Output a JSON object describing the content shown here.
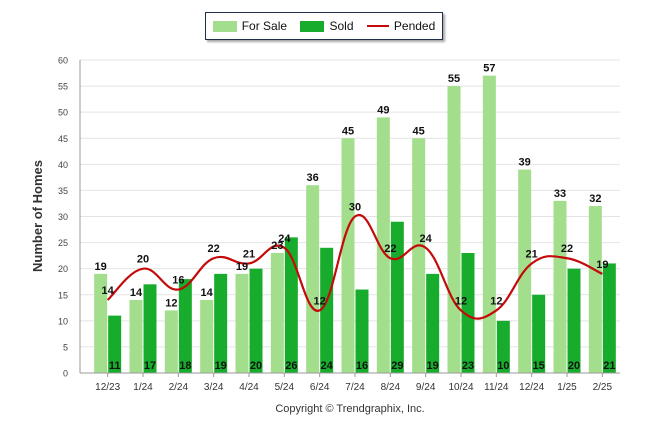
{
  "legend": {
    "for_sale": "For Sale",
    "sold": "Sold",
    "pended": "Pended"
  },
  "copyright": "Copyright © Trendgraphix, Inc.",
  "colors": {
    "for_sale": "#a3de8c",
    "sold": "#18ac2c",
    "pended": "#c40a0a",
    "grid": "#e4e4e4"
  },
  "chart_data": {
    "type": "bar",
    "title": "",
    "xlabel": "",
    "ylabel": "Number of Homes",
    "ylim": [
      0,
      60
    ],
    "yticks": [
      0,
      5,
      10,
      15,
      20,
      25,
      30,
      35,
      40,
      45,
      50,
      55,
      60
    ],
    "grid": true,
    "legend_position": "top-center",
    "categories": [
      "12/23",
      "1/24",
      "2/24",
      "3/24",
      "4/24",
      "5/24",
      "6/24",
      "7/24",
      "8/24",
      "9/24",
      "10/24",
      "11/24",
      "12/24",
      "1/25",
      "2/25"
    ],
    "series": [
      {
        "name": "For Sale",
        "type": "bar",
        "values": [
          19,
          14,
          12,
          14,
          19,
          23,
          36,
          45,
          49,
          45,
          55,
          57,
          39,
          33,
          32
        ]
      },
      {
        "name": "Sold",
        "type": "bar",
        "values": [
          11,
          17,
          18,
          19,
          20,
          26,
          24,
          16,
          29,
          19,
          23,
          10,
          15,
          20,
          21
        ]
      },
      {
        "name": "Pended",
        "type": "line",
        "values": [
          14,
          20,
          16,
          22,
          21,
          24,
          12,
          30,
          22,
          24,
          12,
          12,
          21,
          22,
          19
        ]
      }
    ]
  }
}
